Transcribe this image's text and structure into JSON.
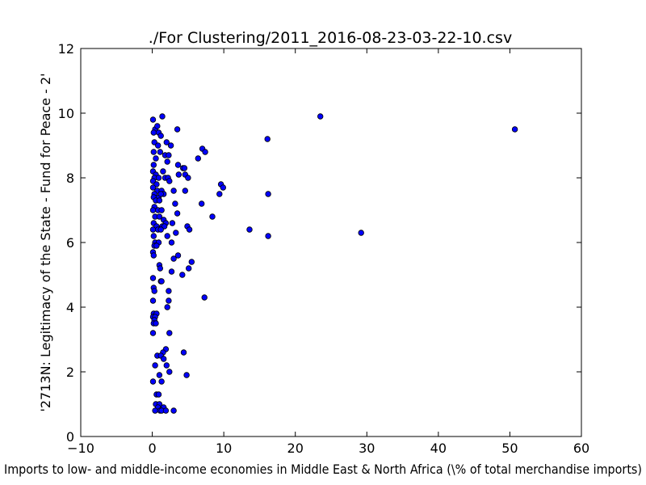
{
  "chart_data": {
    "type": "scatter",
    "title": "./For Clustering/2011_2016-08-23-03-22-10.csv",
    "xlabel": "Imports to low- and middle-income economies in Middle East & North Africa  (\\% of total merchandise imports)",
    "ylabel": "'2713N: Legitimacy of the State - Fund for Peace - 2'",
    "xlim": [
      -10,
      60
    ],
    "ylim": [
      0,
      12
    ],
    "xticks": [
      "−10",
      "0",
      "10",
      "20",
      "30",
      "40",
      "50",
      "60"
    ],
    "yticks": [
      "0",
      "2",
      "4",
      "6",
      "8",
      "10",
      "12"
    ],
    "grid": false,
    "marker_color": "#0000ff",
    "points": [
      [
        0.1,
        9.8
      ],
      [
        0.4,
        9.5
      ],
      [
        0.7,
        9.6
      ],
      [
        0.2,
        9.4
      ],
      [
        0.9,
        9.4
      ],
      [
        1.2,
        9.3
      ],
      [
        1.4,
        9.9
      ],
      [
        0.3,
        9.1
      ],
      [
        0.8,
        9.0
      ],
      [
        2.0,
        9.1
      ],
      [
        2.6,
        9.0
      ],
      [
        3.5,
        9.5
      ],
      [
        1.1,
        8.8
      ],
      [
        0.2,
        8.8
      ],
      [
        1.8,
        8.7
      ],
      [
        2.3,
        8.7
      ],
      [
        0.5,
        8.6
      ],
      [
        2.1,
        8.5
      ],
      [
        0.2,
        8.4
      ],
      [
        3.6,
        8.4
      ],
      [
        4.3,
        8.3
      ],
      [
        4.5,
        8.3
      ],
      [
        0.1,
        8.2
      ],
      [
        1.5,
        8.2
      ],
      [
        0.5,
        8.1
      ],
      [
        3.7,
        8.1
      ],
      [
        4.6,
        8.1
      ],
      [
        0.3,
        8.0
      ],
      [
        0.9,
        8.0
      ],
      [
        1.8,
        8.0
      ],
      [
        2.2,
        8.0
      ],
      [
        5.0,
        8.0
      ],
      [
        0.1,
        7.9
      ],
      [
        0.6,
        7.8
      ],
      [
        2.4,
        7.9
      ],
      [
        0.1,
        7.7
      ],
      [
        0.7,
        7.6
      ],
      [
        1.3,
        7.6
      ],
      [
        3.0,
        7.6
      ],
      [
        4.6,
        7.6
      ],
      [
        0.3,
        7.5
      ],
      [
        1.6,
        7.5
      ],
      [
        0.2,
        7.4
      ],
      [
        0.9,
        7.4
      ],
      [
        1.2,
        7.5
      ],
      [
        0.5,
        7.3
      ],
      [
        1.0,
        7.3
      ],
      [
        3.2,
        7.2
      ],
      [
        0.3,
        7.1
      ],
      [
        0.1,
        7.0
      ],
      [
        0.8,
        7.0
      ],
      [
        1.3,
        7.0
      ],
      [
        3.5,
        6.9
      ],
      [
        0.4,
        6.8
      ],
      [
        1.0,
        6.8
      ],
      [
        1.6,
        6.7
      ],
      [
        0.2,
        6.6
      ],
      [
        1.9,
        6.6
      ],
      [
        2.8,
        6.6
      ],
      [
        0.6,
        6.5
      ],
      [
        1.4,
        6.5
      ],
      [
        1.7,
        6.5
      ],
      [
        4.9,
        6.5
      ],
      [
        5.2,
        6.4
      ],
      [
        0.1,
        6.4
      ],
      [
        0.8,
        6.4
      ],
      [
        1.2,
        6.4
      ],
      [
        3.3,
        6.3
      ],
      [
        0.2,
        6.2
      ],
      [
        2.1,
        6.2
      ],
      [
        0.4,
        6.0
      ],
      [
        0.9,
        6.0
      ],
      [
        2.7,
        6.0
      ],
      [
        0.3,
        5.9
      ],
      [
        0.6,
        5.9
      ],
      [
        0.1,
        5.7
      ],
      [
        0.2,
        5.6
      ],
      [
        3.6,
        5.6
      ],
      [
        3.0,
        5.5
      ],
      [
        5.5,
        5.4
      ],
      [
        1.0,
        5.3
      ],
      [
        1.1,
        5.2
      ],
      [
        5.1,
        5.2
      ],
      [
        2.7,
        5.1
      ],
      [
        4.2,
        5.0
      ],
      [
        0.1,
        4.9
      ],
      [
        1.2,
        4.8
      ],
      [
        1.3,
        4.8
      ],
      [
        0.2,
        4.6
      ],
      [
        0.3,
        4.5
      ],
      [
        2.3,
        4.5
      ],
      [
        0.1,
        4.2
      ],
      [
        2.3,
        4.2
      ],
      [
        2.1,
        4.0
      ],
      [
        0.2,
        3.8
      ],
      [
        0.6,
        3.8
      ],
      [
        0.1,
        3.7
      ],
      [
        0.4,
        3.7
      ],
      [
        0.3,
        3.6
      ],
      [
        0.2,
        3.5
      ],
      [
        0.5,
        3.5
      ],
      [
        0.1,
        3.2
      ],
      [
        2.4,
        3.2
      ],
      [
        1.9,
        2.7
      ],
      [
        1.5,
        2.6
      ],
      [
        4.4,
        2.6
      ],
      [
        0.7,
        2.5
      ],
      [
        1.2,
        2.5
      ],
      [
        1.6,
        2.4
      ],
      [
        0.4,
        2.2
      ],
      [
        2.0,
        2.2
      ],
      [
        2.4,
        2.0
      ],
      [
        1.0,
        1.9
      ],
      [
        4.8,
        1.9
      ],
      [
        0.1,
        1.7
      ],
      [
        1.3,
        1.7
      ],
      [
        0.6,
        1.3
      ],
      [
        0.9,
        1.3
      ],
      [
        0.5,
        1.0
      ],
      [
        1.0,
        1.0
      ],
      [
        0.8,
        0.9
      ],
      [
        1.6,
        0.9
      ],
      [
        0.4,
        0.8
      ],
      [
        1.1,
        0.8
      ],
      [
        1.3,
        0.8
      ],
      [
        1.9,
        0.8
      ],
      [
        3.0,
        0.8
      ],
      [
        6.4,
        8.6
      ],
      [
        7.0,
        8.9
      ],
      [
        7.4,
        8.8
      ],
      [
        9.6,
        7.8
      ],
      [
        9.9,
        7.7
      ],
      [
        9.4,
        7.5
      ],
      [
        6.9,
        7.2
      ],
      [
        8.4,
        6.8
      ],
      [
        7.3,
        4.3
      ],
      [
        16.1,
        9.2
      ],
      [
        16.2,
        7.5
      ],
      [
        13.6,
        6.4
      ],
      [
        16.2,
        6.2
      ],
      [
        23.5,
        9.9
      ],
      [
        29.2,
        6.3
      ],
      [
        50.7,
        9.5
      ]
    ]
  }
}
